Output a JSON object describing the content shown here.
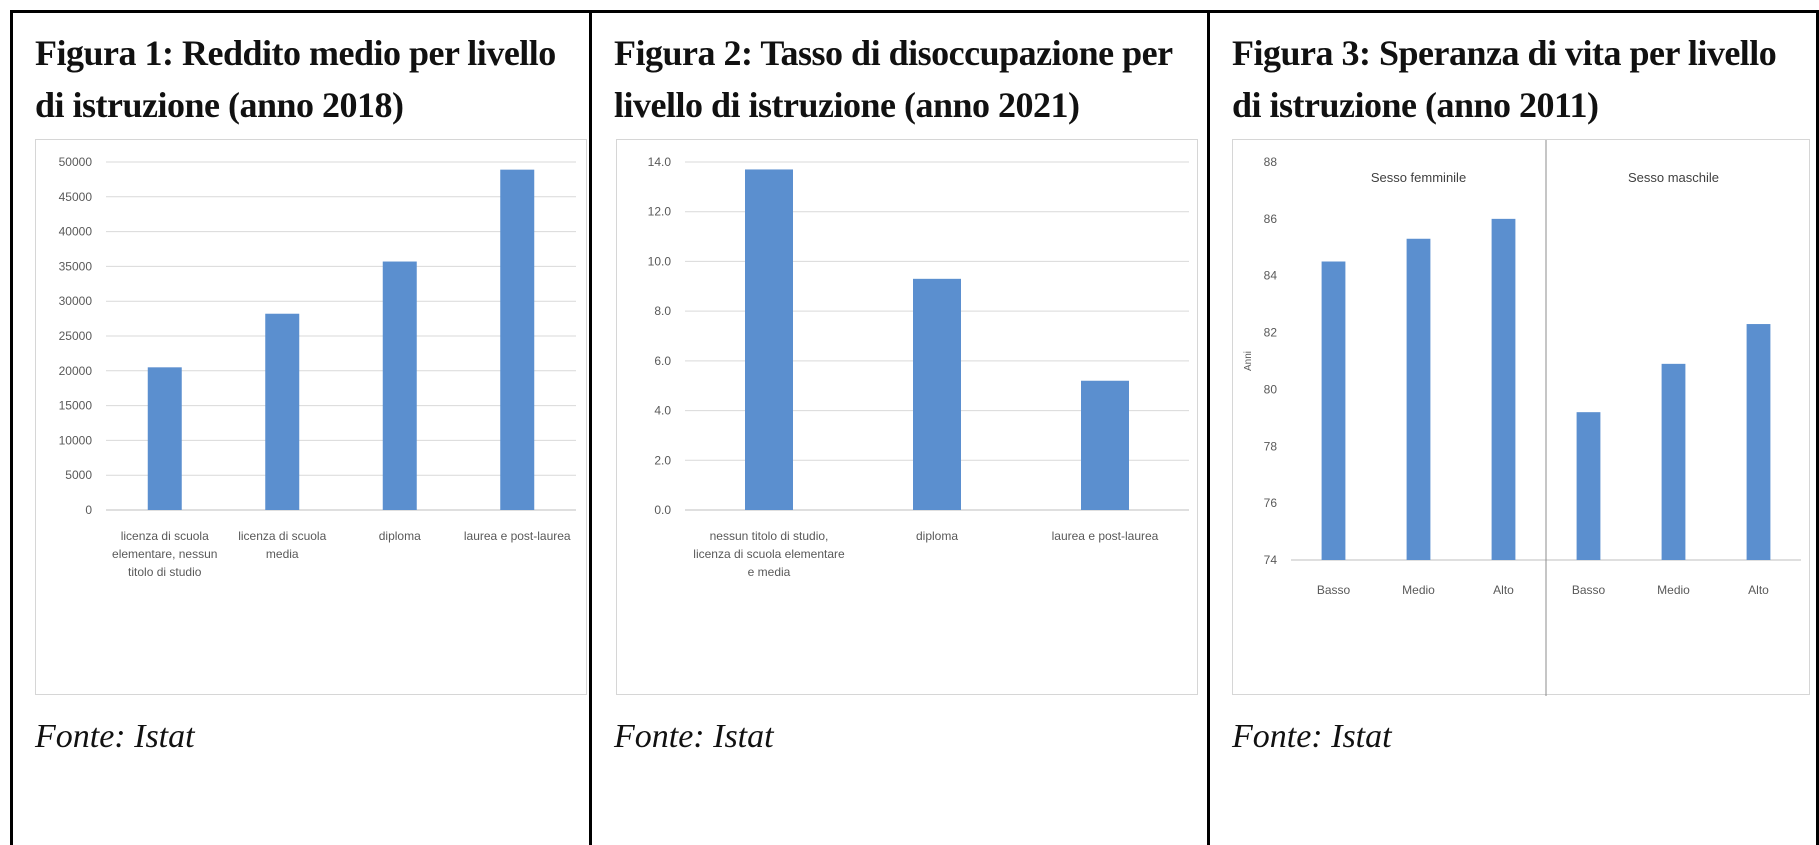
{
  "figures": [
    {
      "title": "Figura 1: Reddito medio per livello di istruzione (anno 2018)",
      "source": "Fonte: Istat"
    },
    {
      "title": "Figura 2: Tasso di disoccupazione per livello di istruzione (anno 2021)",
      "source": "Fonte: Istat"
    },
    {
      "title": "Figura 3: Speranza di vita per livello di istruzione (anno 2011)",
      "source": "Fonte: Istat"
    }
  ],
  "colors": {
    "bar": "#5b8fcf",
    "grid": "#d9d9d9",
    "axis": "#bfbfbf"
  },
  "chart_data": [
    {
      "type": "bar",
      "categories": [
        [
          "licenza di scuola",
          "elementare, nessun",
          "titolo di studio"
        ],
        [
          "licenza di scuola",
          "media"
        ],
        [
          "diploma"
        ],
        [
          "laurea e post-laurea"
        ]
      ],
      "values": [
        20500,
        28200,
        35700,
        48900
      ],
      "ylim": [
        0,
        50000
      ],
      "yticks": [
        0,
        5000,
        10000,
        15000,
        20000,
        25000,
        30000,
        35000,
        40000,
        45000,
        50000
      ],
      "tick_decimals": 0,
      "grid": true
    },
    {
      "type": "bar",
      "categories": [
        [
          "nessun titolo di studio,",
          "licenza di scuola elementare",
          "e media"
        ],
        [
          "diploma"
        ],
        [
          "laurea e post-laurea"
        ]
      ],
      "values": [
        13.7,
        9.3,
        5.2
      ],
      "ylim": [
        0,
        14
      ],
      "yticks": [
        0,
        2,
        4,
        6,
        8,
        10,
        12,
        14
      ],
      "tick_decimals": 1,
      "grid": true
    },
    {
      "type": "bar",
      "ylabel": "Anni",
      "ylim": [
        74,
        88
      ],
      "yticks": [
        74,
        76,
        78,
        80,
        82,
        84,
        86,
        88
      ],
      "tick_decimals": 0,
      "grid": false,
      "groups": [
        {
          "name": "Sesso femminile",
          "categories": [
            "Basso",
            "Medio",
            "Alto"
          ],
          "values": [
            84.5,
            85.3,
            86.0
          ]
        },
        {
          "name": "Sesso maschile",
          "categories": [
            "Basso",
            "Medio",
            "Alto"
          ],
          "values": [
            79.2,
            80.9,
            82.3
          ]
        }
      ]
    }
  ]
}
